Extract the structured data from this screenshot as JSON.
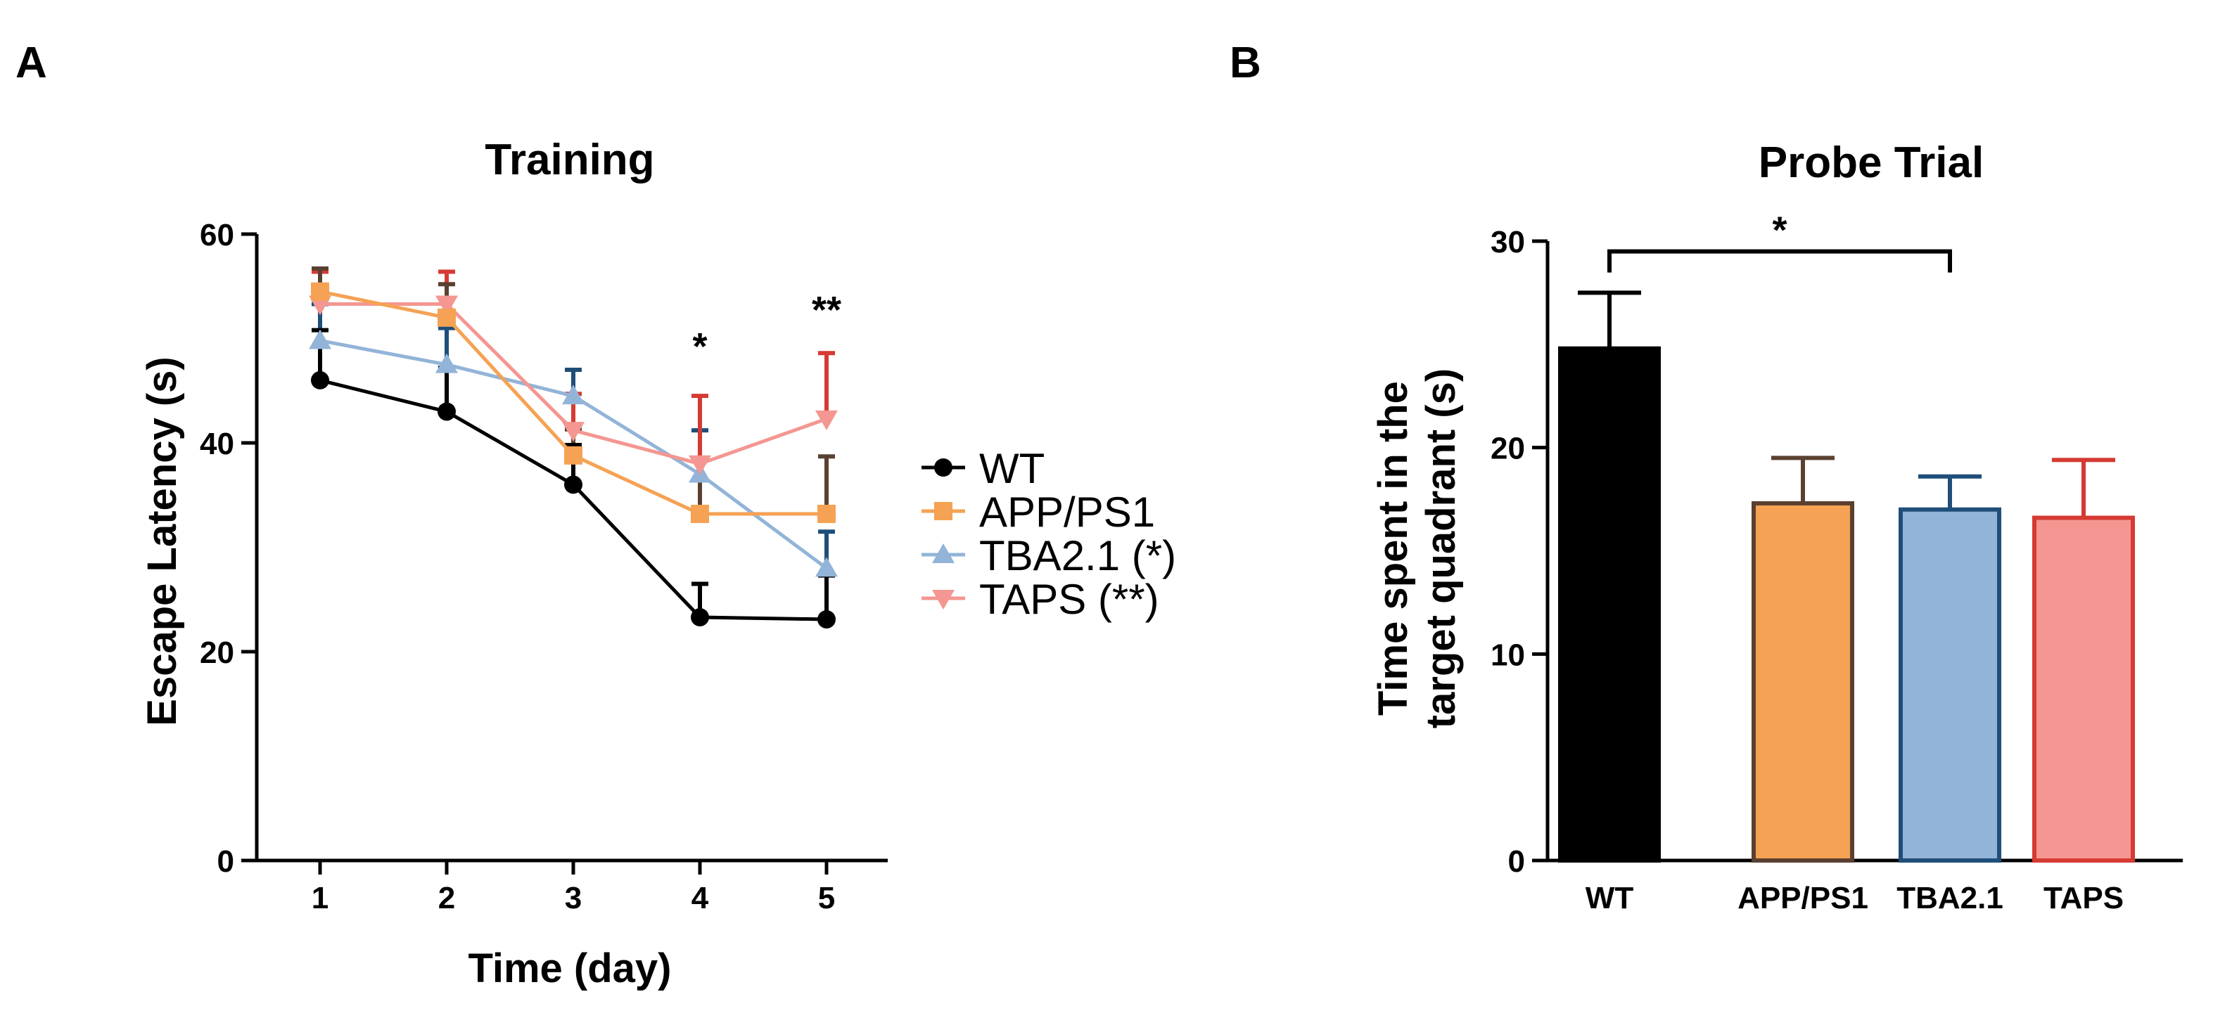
{
  "panels": {
    "a_label": "A",
    "b_label": "B"
  },
  "colors": {
    "WT": "#000000",
    "APP/PS1": "#F5A254",
    "TBA2.1": "#92B4D8",
    "TAPS": "#F49691",
    "APP/PS1_err": "#5A4030",
    "TBA2.1_err": "#1F4E79",
    "TAPS_err": "#D53A33"
  },
  "chart_data": [
    {
      "type": "line",
      "title": "Training",
      "xlabel": "Time (day)",
      "ylabel": "Escape Latency (s)",
      "x": [
        1,
        2,
        3,
        4,
        5
      ],
      "xlim": [
        0.5,
        5.5
      ],
      "ylim": [
        0,
        60
      ],
      "yticks": [
        0,
        20,
        40,
        60
      ],
      "xticks": [
        1,
        2,
        3,
        4,
        5
      ],
      "legend_position": "right",
      "series": [
        {
          "name": "WT",
          "legend": "WT",
          "marker": "circle",
          "values": [
            46,
            43,
            36,
            23.3,
            23.1
          ],
          "errors": [
            4.8,
            4.2,
            3.8,
            3.2,
            4.2
          ]
        },
        {
          "name": "APP/PS1",
          "legend": "APP/PS1",
          "marker": "square",
          "values": [
            54.5,
            52,
            38.8,
            33.2,
            33.2
          ],
          "errors": [
            2.2,
            3.2,
            2.5,
            5.2,
            5.5
          ]
        },
        {
          "name": "TBA2.1",
          "legend": "TBA2.1 (*)",
          "marker": "triangle-up",
          "values": [
            49.8,
            47.5,
            44.5,
            37,
            28
          ],
          "errors": [
            3.5,
            3.5,
            2.5,
            4.2,
            3.5
          ]
        },
        {
          "name": "TAPS",
          "legend": "TAPS (**)",
          "marker": "triangle-down",
          "values": [
            53.3,
            53.3,
            41.2,
            38,
            42.3
          ],
          "errors": [
            3.1,
            3.1,
            3.5,
            6.5,
            6.3
          ]
        }
      ],
      "annotations": [
        {
          "text": "*",
          "x": 4,
          "y": 48
        },
        {
          "text": "**",
          "x": 5,
          "y": 51.5
        }
      ]
    },
    {
      "type": "bar",
      "title": "Probe Trial",
      "xlabel": "",
      "ylabel_line1": "Time spent in the",
      "ylabel_line2": "target quadrant (s)",
      "categories": [
        "WT",
        "APP/PS1",
        "TBA2.1",
        "TAPS"
      ],
      "values": [
        24.8,
        17.3,
        17,
        16.6
      ],
      "errors": [
        2.7,
        2.2,
        1.6,
        2.8
      ],
      "ylim": [
        0,
        30
      ],
      "yticks": [
        0,
        10,
        20,
        30
      ],
      "significance": {
        "from": "WT",
        "to": "TBA2.1",
        "text": "*",
        "y": 29.5
      }
    }
  ]
}
